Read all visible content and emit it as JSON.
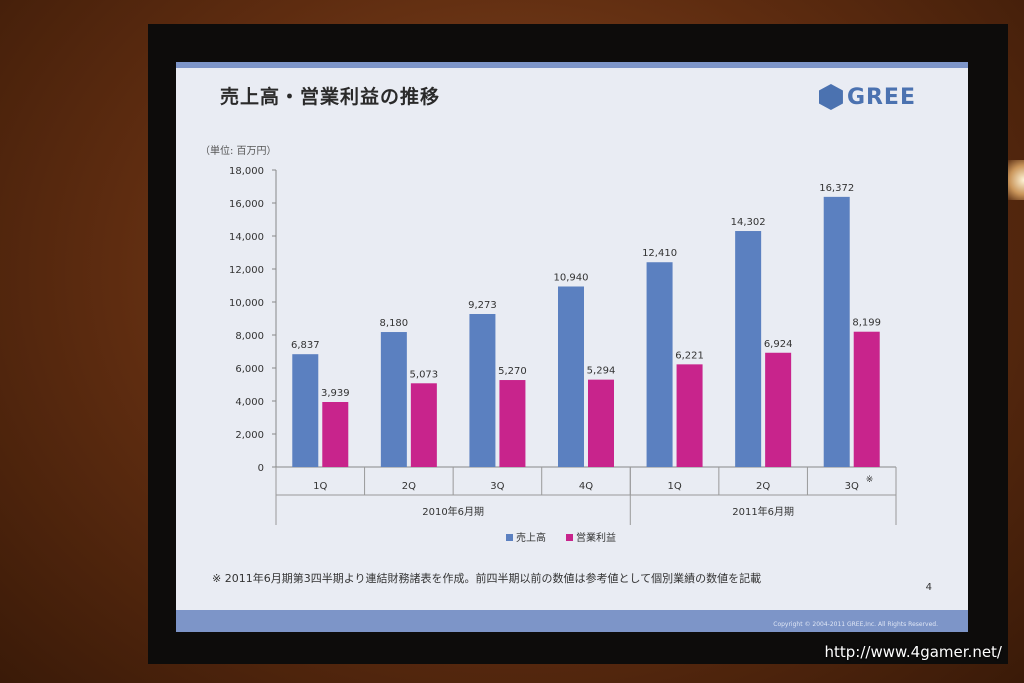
{
  "slide": {
    "title": "売上高・営業利益の推移",
    "logo_text": "GREE",
    "unit_label": "（単位: 百万円）",
    "footnote": "※ 2011年6月期第3四半期より連結財務諸表を作成。前四半期以前の数値は参考値として個別業績の数値を記載",
    "page_number": "4",
    "copyright": "Copyright © 2004-2011 GREE,Inc. All Rights Reserved."
  },
  "watermark": "http://www.4gamer.net/",
  "colors": {
    "sales": "#5b80c0",
    "profit": "#c8248c"
  },
  "chart_data": {
    "type": "bar",
    "categories": [
      "1Q",
      "2Q",
      "3Q",
      "4Q",
      "1Q",
      "2Q",
      "3Q"
    ],
    "groups": [
      {
        "label": "2010年6月期",
        "count": 4
      },
      {
        "label": "2011年6月期",
        "count": 3
      }
    ],
    "category_note": {
      "index": 6,
      "mark": "※"
    },
    "series": [
      {
        "name": "売上高",
        "values": [
          6837,
          8180,
          9273,
          10940,
          12410,
          14302,
          16372
        ],
        "labels": [
          "6,837",
          "8,180",
          "9,273",
          "10,940",
          "12,410",
          "14,302",
          "16,372"
        ]
      },
      {
        "name": "営業利益",
        "values": [
          3939,
          5073,
          5270,
          5294,
          6221,
          6924,
          8199
        ],
        "labels": [
          "3,939",
          "5,073",
          "5,270",
          "5,294",
          "6,221",
          "6,924",
          "8,199"
        ]
      }
    ],
    "ylim": [
      0,
      18000
    ],
    "yticks": [
      "0",
      "2,000",
      "4,000",
      "6,000",
      "8,000",
      "10,000",
      "12,000",
      "14,000",
      "16,000",
      "18,000"
    ],
    "legend": "bottom",
    "grid": false
  }
}
